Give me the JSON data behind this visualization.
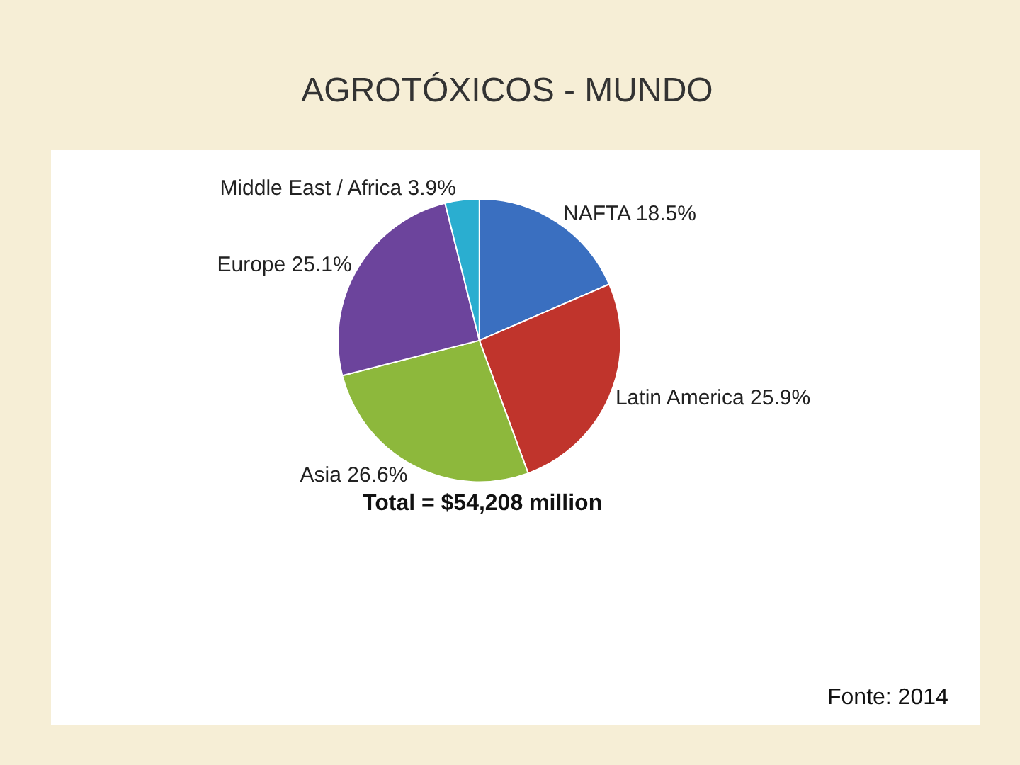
{
  "chart_data": {
    "type": "pie",
    "title": "AGROTÓXICOS - MUNDO",
    "categories": [
      "NAFTA",
      "Latin America",
      "Asia",
      "Europe",
      "Middle East / Africa"
    ],
    "values": [
      18.5,
      25.9,
      26.6,
      25.1,
      3.9
    ],
    "value_labels": [
      "18.5%",
      "25.9%",
      "26.6%",
      "25.1%",
      "3.9%"
    ],
    "colors": [
      "#3a6fc0",
      "#c0342c",
      "#8db83c",
      "#6c449c",
      "#2aaed0"
    ],
    "annotations": [
      "Total = $54,208 million",
      "Fonte: 2014"
    ]
  }
}
